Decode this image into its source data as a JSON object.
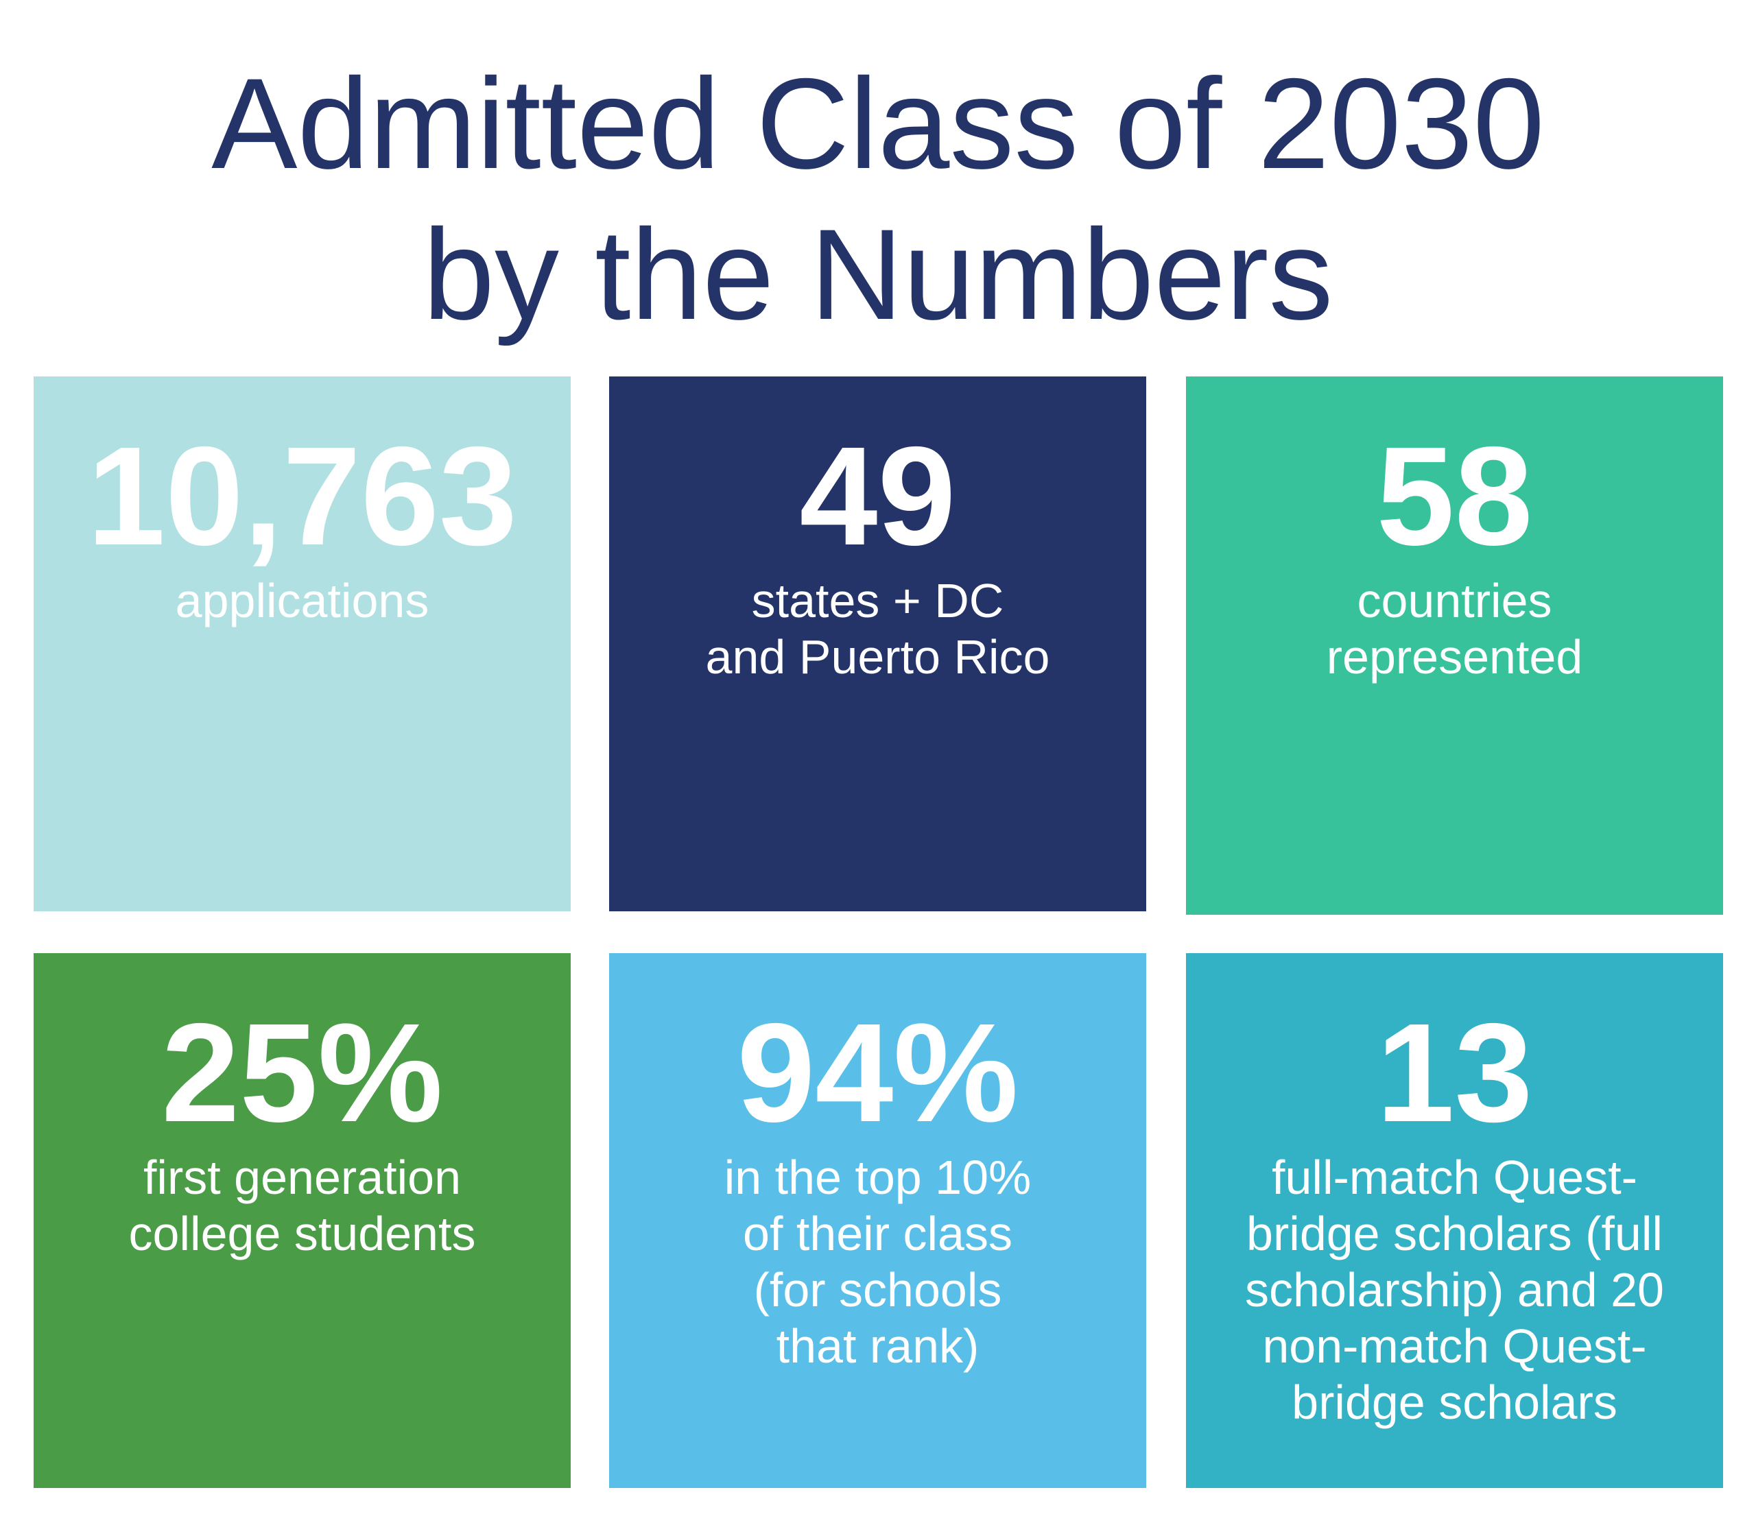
{
  "header": {
    "title": [
      "Admitted Class of 2030",
      "by the Numbers"
    ]
  },
  "stats": [
    {
      "number": "10,763",
      "description": [
        "applications"
      ]
    },
    {
      "number": "49",
      "description": [
        "states + DC",
        "and Puerto Rico"
      ]
    },
    {
      "number": "58",
      "description": [
        "countries",
        "represented"
      ]
    },
    {
      "number": "25%",
      "description": [
        "first generation",
        "college students"
      ]
    },
    {
      "number": "94%",
      "description": [
        "in the top 10%",
        "of their class",
        "(for schools",
        "that rank)"
      ]
    },
    {
      "number": "13",
      "description": [
        "full-match Quest-",
        "bridge scholars (full",
        "scholarship) and 20",
        "non-match Quest-",
        "bridge scholars"
      ]
    }
  ]
}
